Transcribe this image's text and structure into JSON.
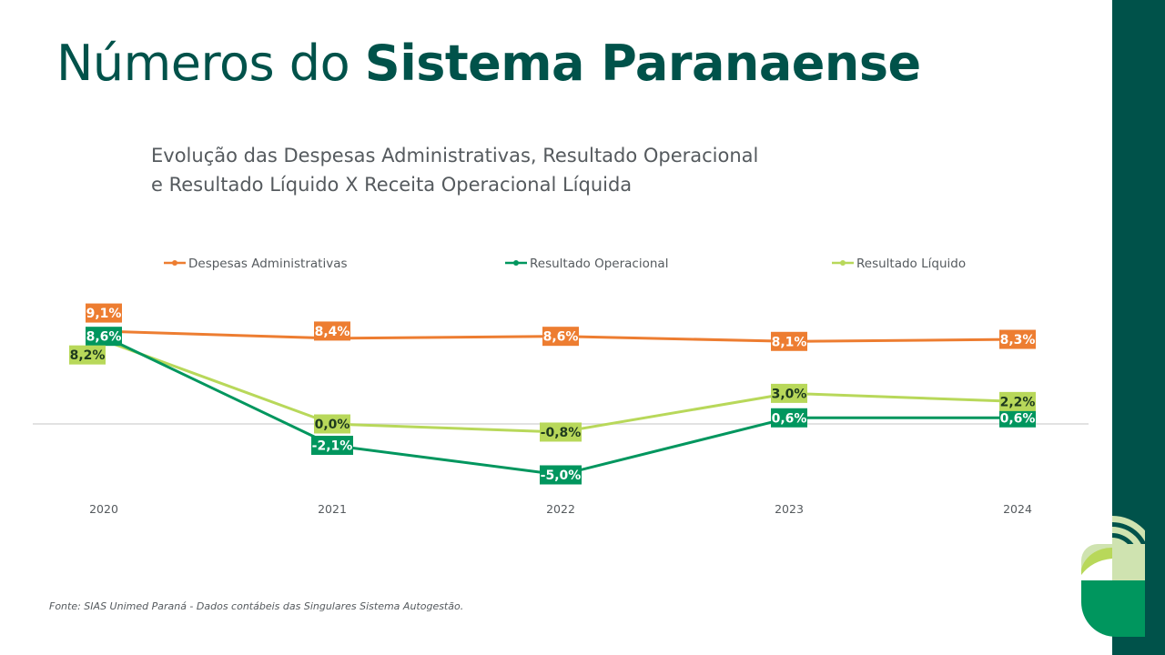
{
  "title": {
    "normal": "Números do",
    "bold": "Sistema Paranaense"
  },
  "subtitle": {
    "line1": "Evolução das Despesas Administrativas, Resultado Operacional",
    "line2": "e Resultado Líquido X Receita Operacional Líquida"
  },
  "source": "Fonte: SIAS Unimed Paraná - Dados contábeis das Singulares Sistema Autogestão.",
  "colors": {
    "accent": "#00524a",
    "orange": "#ed7d31",
    "green": "#00965e",
    "lime": "#b8d85a"
  },
  "chart_data": {
    "type": "line",
    "x": [
      "2020",
      "2021",
      "2022",
      "2023",
      "2024"
    ],
    "ylim": [
      -6,
      10
    ],
    "legend": "top",
    "grid": false,
    "series": [
      {
        "name": "Despesas Administrativas",
        "color": "#ed7d31",
        "label_color": "#ffffff",
        "values": [
          9.1,
          8.4,
          8.6,
          8.1,
          8.3
        ],
        "labels": [
          "9,1%",
          "8,4%",
          "8,6%",
          "8,1%",
          "8,3%"
        ]
      },
      {
        "name": "Resultado Operacional",
        "color": "#00965e",
        "label_color": "#ffffff",
        "values": [
          8.6,
          -2.1,
          -5.0,
          0.6,
          0.6
        ],
        "labels": [
          "8,6%",
          "-2,1%",
          "-5,0%",
          "0,6%",
          "0,6%"
        ]
      },
      {
        "name": "Resultado Líquido",
        "color": "#b8d85a",
        "label_color": "#1e3a1e",
        "values": [
          8.2,
          0.0,
          -0.8,
          3.0,
          2.2
        ],
        "labels": [
          "8,2%",
          "0,0%",
          "-0,8%",
          "3,0%",
          "2,2%"
        ]
      }
    ]
  }
}
